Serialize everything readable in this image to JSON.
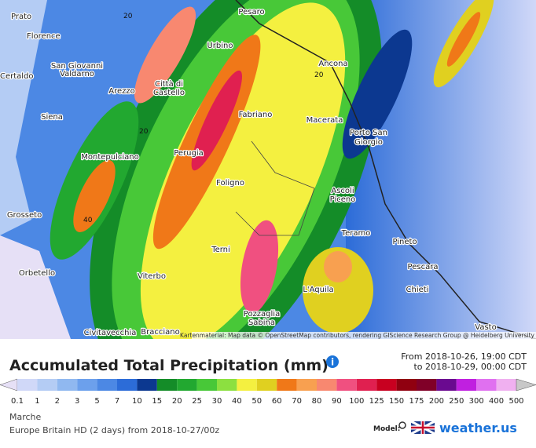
{
  "map": {
    "cities": [
      "Prato",
      "Florence",
      "San Giovanni",
      "Valdarno",
      "Certaldo",
      "Siena",
      "Arezzo",
      "Città di",
      "Castello",
      "Urbino",
      "Pesaro",
      "Ancona",
      "Macerata",
      "Fabriano",
      "Porto San",
      "Giorgio",
      "Perugia",
      "Foligno",
      "Montepulciano",
      "Ascoli",
      "Piceno",
      "Grosseto",
      "Teramo",
      "Pineto",
      "Terni",
      "Orbetello",
      "Viterbo",
      "Pescara",
      "Chieti",
      "L'Aquila",
      "Pozzaglia",
      "Sabina",
      "Civitavecchia",
      "Bracciano",
      "Vasto"
    ],
    "contour_labels": [
      "20",
      "20",
      "20",
      "40"
    ],
    "attribution": "Kartenmaterial: Map data © OpenStreetMap contributors, rendering GIScience Research Group @ Heidelberg University"
  },
  "header": {
    "title": "Accumulated Total Precipitation (mm)",
    "from": "From 2018-10-26, 19:00 CDT",
    "to": "to 2018-10-29, 00:00 CDT"
  },
  "legend": {
    "labels": [
      "0.1",
      "1",
      "2",
      "3",
      "5",
      "7",
      "10",
      "15",
      "20",
      "25",
      "30",
      "40",
      "50",
      "60",
      "70",
      "80",
      "90",
      "100",
      "125",
      "150",
      "175",
      "200",
      "250",
      "300",
      "400",
      "500"
    ],
    "colors": [
      "#e6e0f6",
      "#d0d8f8",
      "#b4ccf4",
      "#90b8f0",
      "#6ca0ec",
      "#4c88e4",
      "#2c6cd8",
      "#0c3890",
      "#148c28",
      "#22a830",
      "#48c838",
      "#8ce040",
      "#f4f040",
      "#e0d020",
      "#f07818",
      "#f8a050",
      "#f88870",
      "#f05080",
      "#e02050",
      "#c80020",
      "#900010",
      "#800028",
      "#6a0a90",
      "#c020e0",
      "#e070f0",
      "#f0b0f0",
      "#c8c8c8"
    ]
  },
  "footer": {
    "region": "Marche",
    "model_run": "Europe Britain HD (2 days) from 2018-10-27/00z",
    "model_label": "Model:",
    "brand": "weather.us"
  }
}
